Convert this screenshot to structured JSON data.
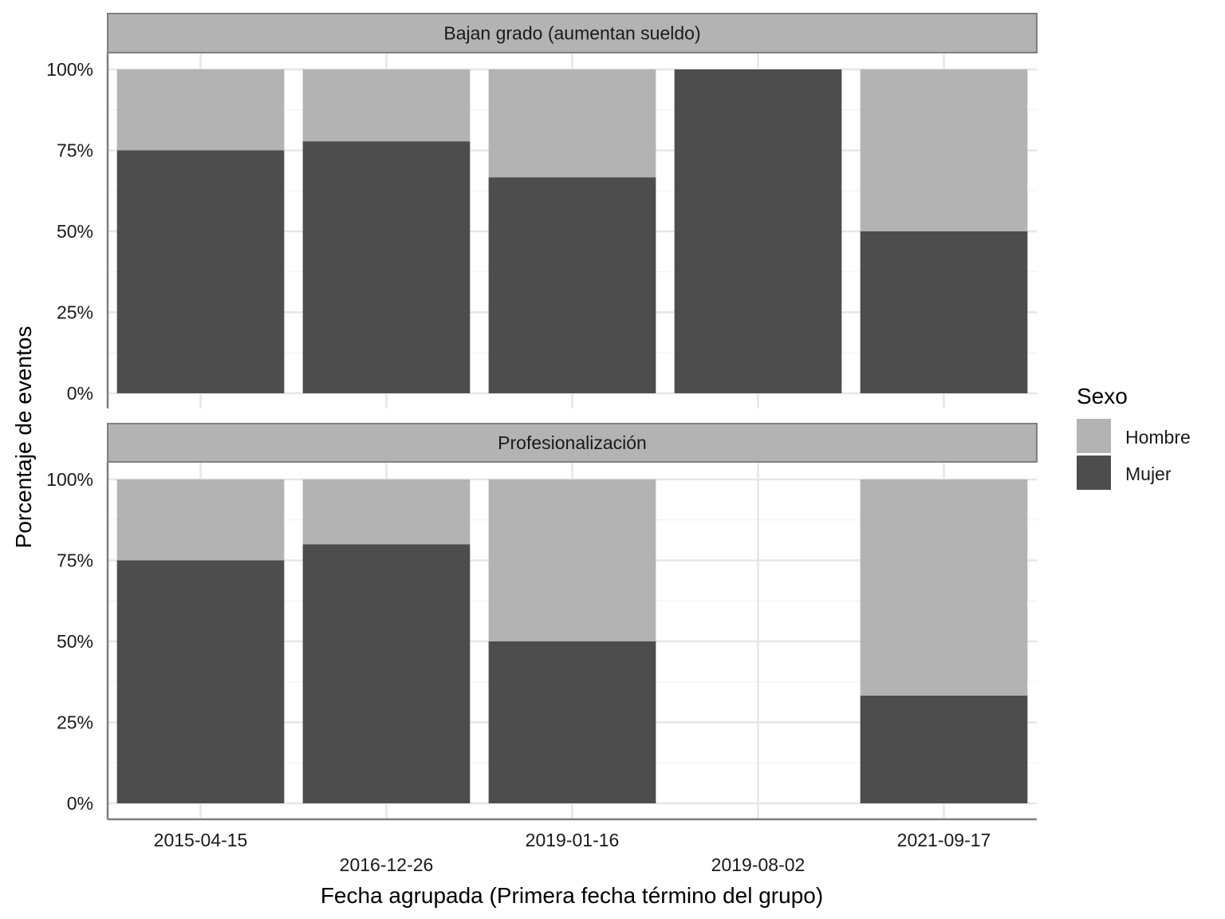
{
  "chart_data": {
    "type": "bar",
    "stacked": true,
    "percent": true,
    "categories": [
      "2015-04-15",
      "2016-12-26",
      "2019-01-16",
      "2019-08-02",
      "2021-09-17"
    ],
    "xlabel": "Fecha agrupada (Primera fecha término del grupo)",
    "ylabel": "Porcentaje de eventos",
    "ylim": [
      0,
      1
    ],
    "y_ticks": [
      0,
      0.25,
      0.5,
      0.75,
      1
    ],
    "y_tick_labels": [
      "0%",
      "25%",
      "50%",
      "75%",
      "100%"
    ],
    "grid": true,
    "legend": {
      "title": "Sexo",
      "position": "right",
      "entries": [
        {
          "name": "Hombre",
          "color": "#b3b3b3"
        },
        {
          "name": "Mujer",
          "color": "#4d4d4d"
        }
      ]
    },
    "facets": [
      {
        "title": "Bajan grado (aumentan sueldo)",
        "series": [
          {
            "name": "Mujer",
            "values": [
              0.75,
              0.778,
              0.667,
              1.0,
              0.5
            ]
          },
          {
            "name": "Hombre",
            "values": [
              0.25,
              0.222,
              0.333,
              0.0,
              0.5
            ]
          }
        ]
      },
      {
        "title": "Profesionalización",
        "series": [
          {
            "name": "Mujer",
            "values": [
              0.75,
              0.8,
              0.5,
              null,
              0.333
            ]
          },
          {
            "name": "Hombre",
            "values": [
              0.25,
              0.2,
              0.5,
              null,
              0.667
            ]
          }
        ]
      }
    ]
  }
}
